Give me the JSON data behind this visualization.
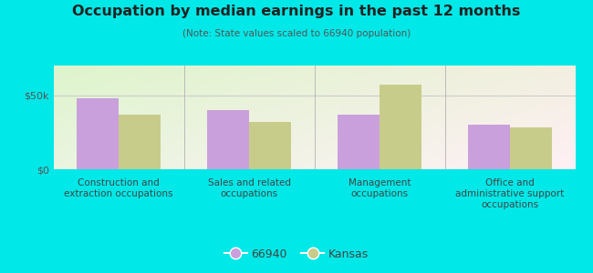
{
  "title": "Occupation by median earnings in the past 12 months",
  "subtitle": "(Note: State values scaled to 66940 population)",
  "categories": [
    "Construction and\nextraction occupations",
    "Sales and related\noccupations",
    "Management\noccupations",
    "Office and\nadministrative support\noccupations"
  ],
  "values_66940": [
    48000,
    40000,
    37000,
    30000
  ],
  "values_kansas": [
    37000,
    32000,
    57000,
    28000
  ],
  "color_66940": "#c9a0dc",
  "color_kansas": "#c8cc8a",
  "background_outer": "#00e8e8",
  "yticks": [
    0,
    50000
  ],
  "ytick_labels": [
    "$0",
    "$50k"
  ],
  "ylim": [
    0,
    70000
  ],
  "legend_label_66940": "66940",
  "legend_label_kansas": "Kansas",
  "bar_width": 0.32,
  "title_fontsize": 11.5,
  "subtitle_fontsize": 7.5,
  "xlabel_fontsize": 7.5,
  "legend_fontsize": 9
}
